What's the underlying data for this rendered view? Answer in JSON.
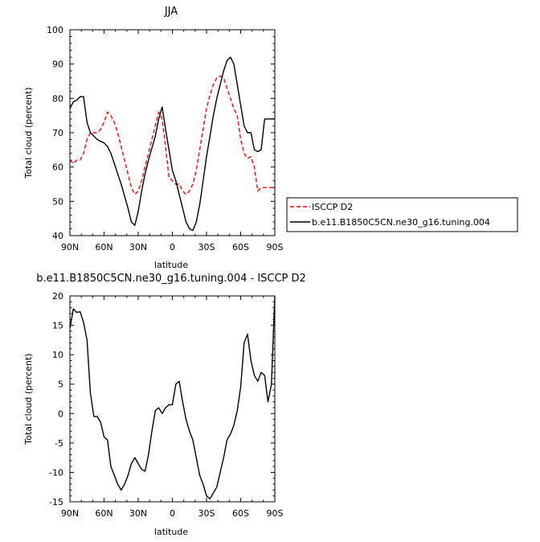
{
  "chart_data": [
    {
      "type": "line",
      "title": "JJA",
      "xlabel": "latitude",
      "ylabel": "Total cloud (percent)",
      "xlim": [
        90,
        -90
      ],
      "ylim": [
        40,
        100
      ],
      "xticks": [
        90,
        60,
        30,
        0,
        -30,
        -60,
        -90
      ],
      "xticklabels": [
        "90N",
        "60N",
        "30N",
        "0",
        "30S",
        "60S",
        "90S"
      ],
      "yticks": [
        40,
        50,
        60,
        70,
        80,
        90,
        100
      ],
      "yticklabels": [
        "40",
        "50",
        "60",
        "70",
        "80",
        "90",
        "100"
      ],
      "grid": false,
      "legend_position": "lower-right-outside",
      "series": [
        {
          "name": "ISCCP D2",
          "color": "#ff0000",
          "dash": "dashed",
          "x": [
            90,
            87,
            84,
            81,
            78,
            75,
            72,
            69,
            66,
            63,
            60,
            57,
            54,
            51,
            48,
            45,
            42,
            39,
            36,
            33,
            30,
            27,
            24,
            21,
            18,
            15,
            12,
            9,
            6,
            3,
            0,
            -3,
            -6,
            -9,
            -12,
            -15,
            -18,
            -21,
            -24,
            -27,
            -30,
            -33,
            -36,
            -39,
            -42,
            -45,
            -48,
            -51,
            -54,
            -57,
            -60,
            -63,
            -66,
            -69,
            -72,
            -75,
            -78,
            -81,
            -84,
            -87,
            -90
          ],
          "y": [
            62.0,
            61.0,
            62.0,
            62.0,
            64.0,
            68.0,
            70.0,
            70.0,
            70.0,
            71.0,
            73.0,
            76.0,
            75.0,
            73.0,
            70.0,
            66.0,
            62.0,
            58.0,
            54.0,
            52.0,
            53.0,
            56.0,
            60.0,
            64.0,
            68.0,
            72.0,
            76.0,
            74.0,
            66.0,
            57.0,
            56.0,
            55.0,
            55.0,
            53.0,
            52.0,
            53.0,
            55.0,
            59.0,
            65.0,
            71.0,
            77.0,
            81.0,
            84.0,
            86.0,
            86.5,
            86.0,
            83.0,
            80.0,
            77.0,
            75.0,
            68.0,
            64.0,
            62.5,
            63.0,
            60.0,
            53.0,
            54.0,
            54.0,
            54.0,
            54.0,
            54.0
          ]
        },
        {
          "name": "b.e11.B1850C5CN.ne30_g16.tuning.004",
          "color": "#000000",
          "dash": "solid",
          "x": [
            90,
            87,
            84,
            81,
            78,
            75,
            72,
            69,
            66,
            63,
            60,
            57,
            54,
            51,
            48,
            45,
            42,
            39,
            36,
            33,
            30,
            27,
            24,
            21,
            18,
            15,
            12,
            9,
            6,
            3,
            0,
            -3,
            -6,
            -9,
            -12,
            -15,
            -18,
            -21,
            -24,
            -27,
            -30,
            -33,
            -36,
            -39,
            -42,
            -45,
            -48,
            -51,
            -54,
            -57,
            -60,
            -63,
            -66,
            -69,
            -72,
            -75,
            -78,
            -81,
            -84,
            -87,
            -90
          ],
          "y": [
            77.0,
            79.0,
            79.5,
            80.5,
            80.5,
            73.0,
            70.0,
            69.0,
            68.0,
            67.5,
            67.0,
            66.0,
            64.0,
            61.0,
            58.0,
            55.0,
            51.5,
            48.0,
            44.0,
            43.0,
            47.0,
            53.0,
            58.0,
            62.0,
            65.5,
            69.0,
            74.0,
            77.5,
            71.0,
            65.0,
            59.0,
            56.0,
            52.0,
            48.0,
            44.0,
            42.0,
            41.5,
            44.0,
            49.0,
            56.0,
            63.0,
            69.0,
            75.0,
            80.0,
            84.0,
            88.0,
            91.0,
            92.0,
            90.0,
            84.0,
            78.0,
            72.0,
            70.0,
            70.0,
            65.0,
            64.5,
            65.0,
            74.0,
            74.0,
            74.0,
            74.0
          ]
        }
      ]
    },
    {
      "type": "line",
      "title": "b.e11.B1850C5CN.ne30_g16.tuning.004 - ISCCP D2",
      "xlabel": "latitude",
      "ylabel": "Total cloud (percent)",
      "xlim": [
        90,
        -90
      ],
      "ylim": [
        -15,
        20
      ],
      "xticks": [
        90,
        60,
        30,
        0,
        -30,
        -60,
        -90
      ],
      "xticklabels": [
        "90N",
        "60N",
        "30N",
        "0",
        "30S",
        "60S",
        "90S"
      ],
      "yticks": [
        -15,
        -10,
        -5,
        0,
        5,
        10,
        15,
        20
      ],
      "yticklabels": [
        "-15",
        "-10",
        "-5",
        "0",
        "5",
        "10",
        "15",
        "20"
      ],
      "grid": false,
      "series": [
        {
          "color": "#000000",
          "dash": "solid",
          "x": [
            90,
            87,
            84,
            81,
            78,
            75,
            72,
            69,
            66,
            63,
            60,
            57,
            54,
            51,
            48,
            45,
            42,
            39,
            36,
            33,
            30,
            27,
            24,
            21,
            18,
            15,
            12,
            9,
            6,
            3,
            0,
            -3,
            -6,
            -9,
            -12,
            -15,
            -18,
            -21,
            -24,
            -27,
            -30,
            -33,
            -36,
            -39,
            -42,
            -45,
            -48,
            -51,
            -54,
            -57,
            -60,
            -63,
            -66,
            -69,
            -72,
            -75,
            -78,
            -81,
            -84,
            -87,
            -90
          ],
          "y": [
            14.5,
            17.8,
            17.2,
            17.3,
            15.5,
            12.5,
            3.5,
            -0.5,
            -0.5,
            -1.5,
            -4.0,
            -4.5,
            -9.0,
            -10.5,
            -12.0,
            -13.0,
            -12.0,
            -10.5,
            -8.5,
            -7.5,
            -8.5,
            -9.5,
            -9.8,
            -7.0,
            -3.0,
            0.5,
            1.0,
            0.0,
            1.0,
            1.5,
            1.5,
            5.0,
            5.5,
            2.0,
            -1.0,
            -3.0,
            -4.5,
            -7.5,
            -10.5,
            -12.0,
            -14.0,
            -14.5,
            -13.5,
            -12.5,
            -10.0,
            -7.5,
            -4.5,
            -3.5,
            -2.0,
            0.5,
            4.5,
            12.0,
            13.5,
            9.0,
            6.5,
            5.5,
            7.0,
            6.5,
            2.0,
            5.0,
            20.0
          ]
        }
      ]
    }
  ]
}
